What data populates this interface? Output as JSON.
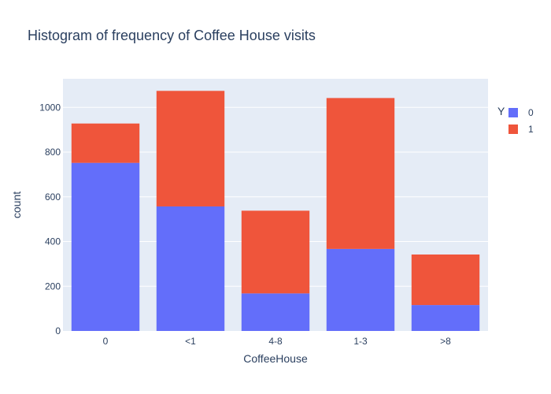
{
  "chart_data": {
    "type": "bar",
    "stacked": true,
    "title": "Histogram of frequency of Coffee House visits",
    "xlabel": "CoffeeHouse",
    "ylabel": "count",
    "categories": [
      "0",
      "<1",
      "4-8",
      "1-3",
      ">8"
    ],
    "series": [
      {
        "name": "0",
        "values": [
          752,
          557,
          168,
          367,
          116
        ],
        "color": "#636efa"
      },
      {
        "name": "1",
        "values": [
          176,
          517,
          370,
          675,
          226
        ],
        "color": "#ef553b"
      }
    ],
    "ylim": [
      0,
      1128
    ],
    "yticks": [
      0,
      200,
      400,
      600,
      800,
      1000
    ],
    "grid": true,
    "plot_background": "#e5ecf6",
    "legend": {
      "title": "Y",
      "placement": "top-right"
    }
  }
}
